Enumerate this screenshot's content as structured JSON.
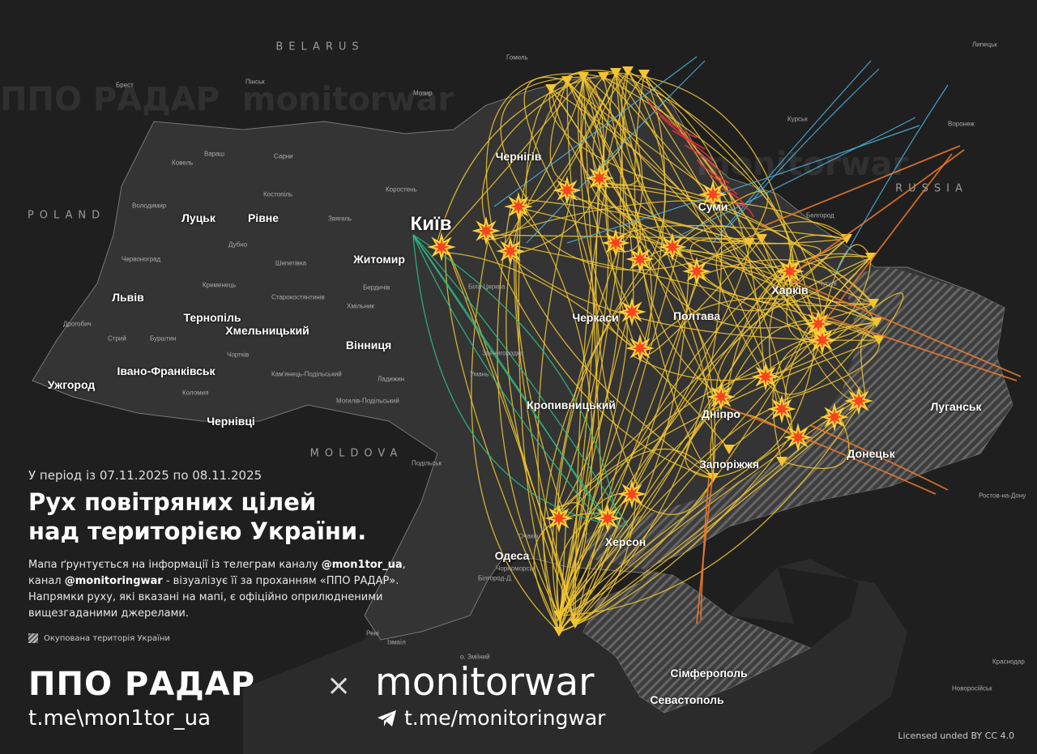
{
  "countries": [
    "BELARUS",
    "POLAND",
    "MOLDOVA",
    "RUSSIA"
  ],
  "major_cities": [
    "Луцьк",
    "Рівне",
    "Житомир",
    "Київ",
    "Чернігів",
    "Суми",
    "Харків",
    "Полтава",
    "Черкаси",
    "Львів",
    "Тернопіль",
    "Хмельницький",
    "Вінниця",
    "Ужгород",
    "Івано-Франківськ",
    "Чернівці",
    "Кропивницький",
    "Дніпро",
    "Запоріжжя",
    "Донецьк",
    "Луганськ",
    "Херсон",
    "Одеса",
    "Сімферополь",
    "Севастополь"
  ],
  "minor_cities": [
    "Брест",
    "Пінськ",
    "Мозир",
    "Гомель",
    "Ковель",
    "Вараш",
    "Сарни",
    "Костопіль",
    "Володимир",
    "Коростень",
    "Звягель",
    "Дубно",
    "Червоноград",
    "Шепетівка",
    "Кременець",
    "Бердичів",
    "Біла Церква",
    "Старокостянтинів",
    "Хмільник",
    "Дрогобич",
    "Стрий",
    "Бурштин",
    "Чортків",
    "Кам'янець-Подільський",
    "Ладижин",
    "Коломия",
    "Могилів-Подільський",
    "Умань",
    "Звенигородка",
    "Подільськ",
    "Чорноморськ",
    "Білгород-Д.",
    "Очаків",
    "о. Зміїний",
    "Ізмаїл",
    "Рені",
    "Курськ",
    "Воронеж",
    "Липецьк",
    "Белгород",
    "Чугуїв",
    "Ростов-на-Дону",
    "Краснодар",
    "Новоросійськ"
  ],
  "info": {
    "period": "У період із 07.11.2025 по 08.11.2025",
    "title_line1": "Рух повітряних цілей",
    "title_line2": "над територією України.",
    "desc_1": "Мапа ґрунтується на інформації із телеграм каналу",
    "desc_handle1": "@mon1tor_ua",
    "desc_2": ", канал ",
    "desc_handle2": "@monitoringwar",
    "desc_3": " - візуалізує її за проханням «ППО РАДАР». Напрямки руху, які вказані на мапі, є офіційно оприлюдненими вищезгаданими джерелами.",
    "legend_occupied": "Окупована територія України"
  },
  "branding": {
    "brand1": "ППО РАДАР",
    "brand1_url": "t.me\\mon1tor_ua",
    "separator": "×",
    "brand2": "monitorwar",
    "brand2_url": "t.me/monitoringwar",
    "brand2_icon": "telegram-icon",
    "license": "Licensed unded BY CC 4.0"
  },
  "colors": {
    "drone_track": "#f2c531",
    "missile_blue": "#4fb6e6",
    "missile_orange": "#f07a2b",
    "missile_red": "#e8323c",
    "kalibr_green": "#2bbf8a",
    "occupied_hatch": "#9a9a9a",
    "explosion": "#f5451f"
  }
}
